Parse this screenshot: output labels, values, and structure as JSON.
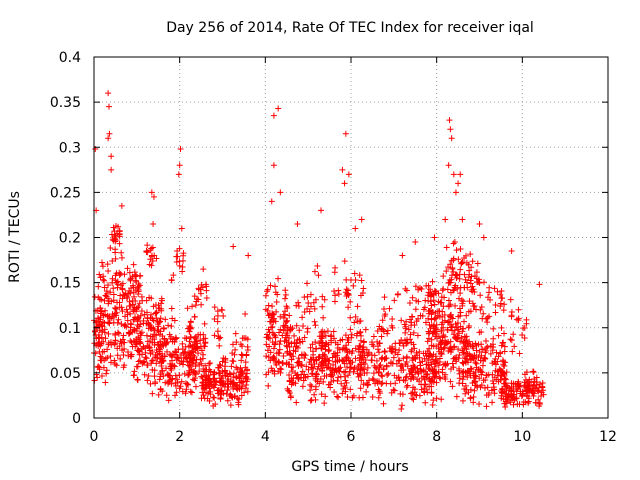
{
  "chart_data": {
    "type": "scatter",
    "title": "Day 256 of 2014, Rate Of TEC Index for receiver iqal",
    "xlabel": "GPS time / hours",
    "ylabel": "ROTI / TECUs",
    "xlim": [
      0,
      12
    ],
    "ylim": [
      0,
      0.4
    ],
    "x_ticks": [
      "0",
      "2",
      "4",
      "6",
      "8",
      "10",
      "12"
    ],
    "y_ticks": [
      "0",
      "0.05",
      "0.1",
      "0.15",
      "0.2",
      "0.25",
      "0.3",
      "0.35",
      "0.4"
    ],
    "grid": true,
    "marker": "+",
    "color": "#ff0000",
    "outliers": [
      [
        0.03,
        0.298
      ],
      [
        0.05,
        0.23
      ],
      [
        0.33,
        0.36
      ],
      [
        0.35,
        0.345
      ],
      [
        0.33,
        0.31
      ],
      [
        0.36,
        0.315
      ],
      [
        0.4,
        0.29
      ],
      [
        0.4,
        0.275
      ],
      [
        0.65,
        0.235
      ],
      [
        1.35,
        0.25
      ],
      [
        1.4,
        0.245
      ],
      [
        1.38,
        0.215
      ],
      [
        2.02,
        0.298
      ],
      [
        2.0,
        0.28
      ],
      [
        1.98,
        0.27
      ],
      [
        2.05,
        0.21
      ],
      [
        2.55,
        0.165
      ],
      [
        3.25,
        0.19
      ],
      [
        3.6,
        0.18
      ],
      [
        4.2,
        0.335
      ],
      [
        4.3,
        0.343
      ],
      [
        4.2,
        0.28
      ],
      [
        4.35,
        0.25
      ],
      [
        4.15,
        0.24
      ],
      [
        4.75,
        0.215
      ],
      [
        5.3,
        0.23
      ],
      [
        5.8,
        0.275
      ],
      [
        5.85,
        0.26
      ],
      [
        5.88,
        0.315
      ],
      [
        5.95,
        0.27
      ],
      [
        6.25,
        0.22
      ],
      [
        6.1,
        0.21
      ],
      [
        7.2,
        0.18
      ],
      [
        7.5,
        0.195
      ],
      [
        7.95,
        0.2
      ],
      [
        8.3,
        0.33
      ],
      [
        8.32,
        0.32
      ],
      [
        8.35,
        0.31
      ],
      [
        8.28,
        0.28
      ],
      [
        8.4,
        0.27
      ],
      [
        8.55,
        0.27
      ],
      [
        8.5,
        0.26
      ],
      [
        8.45,
        0.25
      ],
      [
        8.6,
        0.22
      ],
      [
        8.2,
        0.22
      ],
      [
        9.0,
        0.215
      ],
      [
        9.1,
        0.2
      ],
      [
        9.75,
        0.185
      ],
      [
        10.4,
        0.148
      ]
    ],
    "clusters": [
      {
        "x": [
          0.0,
          0.15
        ],
        "y_center": 0.1,
        "y_spread": 0.09,
        "y_min": 0.04,
        "count": 40
      },
      {
        "x": [
          0.1,
          1.1
        ],
        "y_center": 0.11,
        "y_spread": 0.1,
        "y_min": 0.015,
        "count": 260
      },
      {
        "x": [
          0.4,
          0.6
        ],
        "y_center": 0.2,
        "y_spread": 0.02,
        "y_min": 0.15,
        "count": 20
      },
      {
        "x": [
          1.0,
          1.6
        ],
        "y_center": 0.09,
        "y_spread": 0.08,
        "y_min": 0.02,
        "count": 130
      },
      {
        "x": [
          1.2,
          1.5
        ],
        "y_center": 0.18,
        "y_spread": 0.02,
        "y_min": 0.15,
        "count": 15
      },
      {
        "x": [
          1.5,
          2.4
        ],
        "y_center": 0.07,
        "y_spread": 0.07,
        "y_min": 0.01,
        "count": 160
      },
      {
        "x": [
          1.8,
          2.1
        ],
        "y_center": 0.17,
        "y_spread": 0.03,
        "y_min": 0.12,
        "count": 15
      },
      {
        "x": [
          2.2,
          2.6
        ],
        "y_center": 0.08,
        "y_spread": 0.07,
        "y_min": 0.02,
        "count": 70
      },
      {
        "x": [
          2.4,
          2.65
        ],
        "y_center": 0.14,
        "y_spread": 0.02,
        "y_min": 0.1,
        "count": 12
      },
      {
        "x": [
          2.5,
          3.0
        ],
        "y_center": 0.04,
        "y_spread": 0.035,
        "y_min": 0.01,
        "count": 100
      },
      {
        "x": [
          2.8,
          3.1
        ],
        "y_center": 0.1,
        "y_spread": 0.04,
        "y_min": 0.04,
        "count": 15
      },
      {
        "x": [
          3.0,
          3.6
        ],
        "y_center": 0.04,
        "y_spread": 0.035,
        "y_min": 0.01,
        "count": 100
      },
      {
        "x": [
          3.2,
          3.6
        ],
        "y_center": 0.08,
        "y_spread": 0.04,
        "y_min": 0.03,
        "count": 20
      },
      {
        "x": [
          4.0,
          4.6
        ],
        "y_center": 0.09,
        "y_spread": 0.08,
        "y_min": 0.02,
        "count": 120
      },
      {
        "x": [
          4.5,
          5.4
        ],
        "y_center": 0.06,
        "y_spread": 0.06,
        "y_min": 0.01,
        "count": 150
      },
      {
        "x": [
          4.7,
          5.4
        ],
        "y_center": 0.13,
        "y_spread": 0.04,
        "y_min": 0.08,
        "count": 25
      },
      {
        "x": [
          5.3,
          6.3
        ],
        "y_center": 0.065,
        "y_spread": 0.06,
        "y_min": 0.01,
        "count": 170
      },
      {
        "x": [
          5.6,
          6.3
        ],
        "y_center": 0.14,
        "y_spread": 0.04,
        "y_min": 0.09,
        "count": 30
      },
      {
        "x": [
          6.2,
          7.5
        ],
        "y_center": 0.06,
        "y_spread": 0.06,
        "y_min": 0.01,
        "count": 180
      },
      {
        "x": [
          6.7,
          7.6
        ],
        "y_center": 0.11,
        "y_spread": 0.05,
        "y_min": 0.06,
        "count": 35
      },
      {
        "x": [
          7.4,
          8.0
        ],
        "y_center": 0.05,
        "y_spread": 0.05,
        "y_min": 0.01,
        "count": 90
      },
      {
        "x": [
          7.5,
          8.0
        ],
        "y_center": 0.13,
        "y_spread": 0.04,
        "y_min": 0.08,
        "count": 25
      },
      {
        "x": [
          7.8,
          8.8
        ],
        "y_center": 0.09,
        "y_spread": 0.09,
        "y_min": 0.01,
        "count": 250
      },
      {
        "x": [
          8.2,
          9.0
        ],
        "y_center": 0.16,
        "y_spread": 0.05,
        "y_min": 0.1,
        "count": 60
      },
      {
        "x": [
          8.6,
          9.6
        ],
        "y_center": 0.06,
        "y_spread": 0.06,
        "y_min": 0.01,
        "count": 170
      },
      {
        "x": [
          8.8,
          9.6
        ],
        "y_center": 0.13,
        "y_spread": 0.03,
        "y_min": 0.09,
        "count": 30
      },
      {
        "x": [
          9.5,
          10.5
        ],
        "y_center": 0.03,
        "y_spread": 0.028,
        "y_min": 0.01,
        "count": 150
      },
      {
        "x": [
          9.7,
          10.1
        ],
        "y_center": 0.1,
        "y_spread": 0.04,
        "y_min": 0.05,
        "count": 20
      }
    ]
  }
}
